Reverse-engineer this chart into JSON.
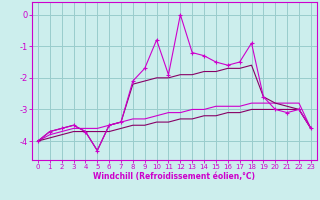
{
  "xlabel": "Windchill (Refroidissement éolien,°C)",
  "bg_color": "#cceeed",
  "line_color": "#cc00cc",
  "line_color2": "#880066",
  "grid_color": "#99cccc",
  "x": [
    0,
    1,
    2,
    3,
    4,
    5,
    6,
    7,
    8,
    9,
    10,
    11,
    12,
    13,
    14,
    15,
    16,
    17,
    18,
    19,
    20,
    21,
    22,
    23
  ],
  "series1": [
    -4.0,
    -3.7,
    -3.6,
    -3.5,
    -3.7,
    -4.3,
    -3.5,
    -3.4,
    -2.1,
    -1.7,
    -0.8,
    -1.9,
    0.0,
    -1.2,
    -1.3,
    -1.5,
    -1.6,
    -1.5,
    -0.9,
    -2.6,
    -3.0,
    -3.1,
    -3.0,
    -3.6
  ],
  "series2": [
    -4.0,
    -3.7,
    -3.6,
    -3.5,
    -3.7,
    -4.3,
    -3.5,
    -3.4,
    -2.2,
    -2.1,
    -2.0,
    -2.0,
    -1.9,
    -1.9,
    -1.8,
    -1.8,
    -1.7,
    -1.7,
    -1.6,
    -2.6,
    -2.8,
    -2.9,
    -3.0,
    -3.6
  ],
  "series3": [
    -4.0,
    -3.8,
    -3.7,
    -3.6,
    -3.6,
    -3.6,
    -3.5,
    -3.4,
    -3.3,
    -3.3,
    -3.2,
    -3.1,
    -3.1,
    -3.0,
    -3.0,
    -2.9,
    -2.9,
    -2.9,
    -2.8,
    -2.8,
    -2.8,
    -2.8,
    -2.8,
    -3.6
  ],
  "series4": [
    -4.0,
    -3.9,
    -3.8,
    -3.7,
    -3.7,
    -3.7,
    -3.7,
    -3.6,
    -3.5,
    -3.5,
    -3.4,
    -3.4,
    -3.3,
    -3.3,
    -3.2,
    -3.2,
    -3.1,
    -3.1,
    -3.0,
    -3.0,
    -3.0,
    -3.0,
    -3.0,
    -3.6
  ],
  "xlim": [
    -0.5,
    23.5
  ],
  "ylim": [
    -4.6,
    0.4
  ],
  "yticks": [
    0,
    -1,
    -2,
    -3,
    -4
  ],
  "xticks": [
    0,
    1,
    2,
    3,
    4,
    5,
    6,
    7,
    8,
    9,
    10,
    11,
    12,
    13,
    14,
    15,
    16,
    17,
    18,
    19,
    20,
    21,
    22,
    23
  ],
  "tick_label_size": 5,
  "xlabel_size": 5.5
}
